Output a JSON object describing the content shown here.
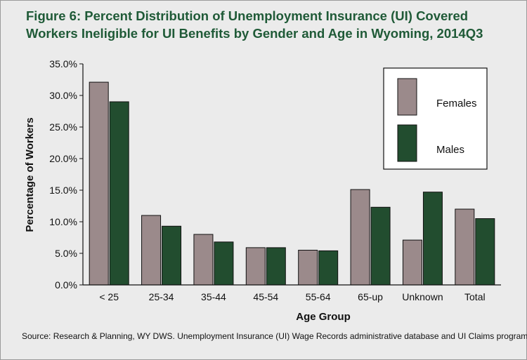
{
  "title_line1": "Figure 6: Percent Distribution of Unemployment Insurance (UI) Covered",
  "title_line2": "Workers Ineligible for UI Benefits by Gender and Age in Wyoming, 2014Q3",
  "source": "Source:  Research & Planning, WY DWS. Unemployment Insurance (UI) Wage Records administrative database and UI Claims program.",
  "colors": {
    "females": "#9b8a8b",
    "males": "#224d2f",
    "background": "#ebebeb",
    "title": "#1f5a37"
  },
  "chart_data": {
    "type": "bar",
    "categories": [
      "< 25",
      "25-34",
      "35-44",
      "45-54",
      "55-64",
      "65-up",
      "Unknown",
      "Total"
    ],
    "series": [
      {
        "name": "Females",
        "values": [
          32.1,
          11.0,
          8.0,
          5.9,
          5.5,
          15.1,
          7.1,
          12.0
        ]
      },
      {
        "name": "Males",
        "values": [
          29.0,
          9.3,
          6.8,
          5.9,
          5.4,
          12.3,
          14.7,
          10.5
        ]
      }
    ],
    "title": "",
    "xlabel": "Age Group",
    "ylabel": "Percentage of Workers",
    "ylim": [
      0,
      35
    ],
    "yticks": [
      "0.0%",
      "5.0%",
      "10.0%",
      "15.0%",
      "20.0%",
      "25.0%",
      "30.0%",
      "35.0%"
    ],
    "grid": false,
    "legend_position": "top-right"
  }
}
